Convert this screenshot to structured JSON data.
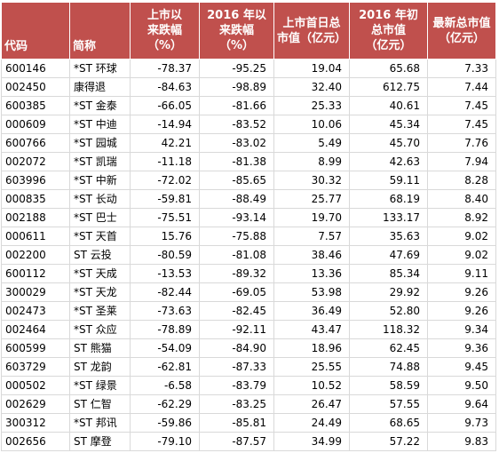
{
  "table": {
    "headers": [
      {
        "line1": "",
        "line2": "代码"
      },
      {
        "line1": "",
        "line2": "简称"
      },
      {
        "line1": "上市以",
        "line2": "来跌幅",
        "line3": "（%）"
      },
      {
        "line1": "2016 年以",
        "line2": "来跌幅",
        "line3": "（%）"
      },
      {
        "line1": "上市首日总",
        "line2": "市值（亿元）"
      },
      {
        "line1": "2016 年初",
        "line2": "总市值",
        "line3": "（亿元）"
      },
      {
        "line1": "",
        "line2": "最新总市值",
        "line3": "（亿元）"
      }
    ],
    "rows": [
      [
        "600146",
        "*ST 环球",
        "-78.37",
        "-95.25",
        "19.04",
        "65.68",
        "7.33"
      ],
      [
        "002450",
        "康得退",
        "-84.63",
        "-98.89",
        "32.40",
        "612.75",
        "7.44"
      ],
      [
        "600385",
        "*ST 金泰",
        "-66.05",
        "-81.66",
        "25.33",
        "40.61",
        "7.45"
      ],
      [
        "000609",
        "*ST 中迪",
        "-14.94",
        "-83.52",
        "10.06",
        "45.34",
        "7.45"
      ],
      [
        "600766",
        "*ST 园城",
        "42.21",
        "-83.02",
        "5.49",
        "45.70",
        "7.76"
      ],
      [
        "002072",
        "*ST 凯瑞",
        "-11.18",
        "-81.38",
        "8.99",
        "42.63",
        "7.94"
      ],
      [
        "603996",
        "*ST 中新",
        "-72.02",
        "-85.65",
        "30.32",
        "59.11",
        "8.28"
      ],
      [
        "000835",
        "*ST 长动",
        "-59.81",
        "-88.49",
        "25.77",
        "68.19",
        "8.40"
      ],
      [
        "002188",
        "*ST 巴士",
        "-75.51",
        "-93.14",
        "19.70",
        "133.17",
        "8.92"
      ],
      [
        "000611",
        "*ST 天首",
        "15.76",
        "-75.88",
        "7.57",
        "35.63",
        "9.02"
      ],
      [
        "002200",
        "ST 云投",
        "-80.59",
        "-81.08",
        "38.46",
        "47.69",
        "9.02"
      ],
      [
        "600112",
        "*ST 天成",
        "-13.53",
        "-89.32",
        "13.36",
        "85.34",
        "9.11"
      ],
      [
        "300029",
        "*ST 天龙",
        "-82.44",
        "-69.05",
        "53.98",
        "29.92",
        "9.26"
      ],
      [
        "002473",
        "*ST 圣莱",
        "-73.63",
        "-82.45",
        "36.49",
        "52.80",
        "9.26"
      ],
      [
        "002464",
        "*ST 众应",
        "-78.89",
        "-92.11",
        "43.47",
        "118.32",
        "9.34"
      ],
      [
        "600599",
        "ST 熊猫",
        "-54.09",
        "-84.90",
        "18.96",
        "62.45",
        "9.36"
      ],
      [
        "603729",
        "ST 龙韵",
        "-62.81",
        "-87.33",
        "25.55",
        "74.88",
        "9.45"
      ],
      [
        "000502",
        "*ST 绿景",
        "-6.58",
        "-83.79",
        "10.52",
        "58.59",
        "9.50"
      ],
      [
        "002629",
        "ST 仁智",
        "-62.29",
        "-83.25",
        "26.47",
        "57.55",
        "9.64"
      ],
      [
        "300312",
        "*ST 邦讯",
        "-59.86",
        "-85.81",
        "24.49",
        "68.65",
        "9.73"
      ],
      [
        "002656",
        "ST 摩登",
        "-79.10",
        "-87.57",
        "34.99",
        "57.22",
        "9.83"
      ]
    ]
  }
}
